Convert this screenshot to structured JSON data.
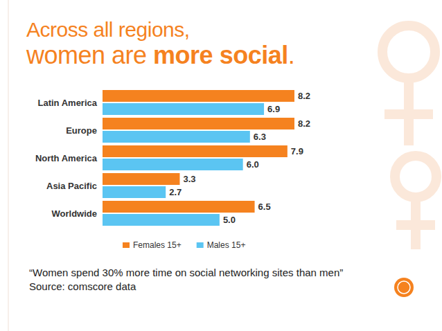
{
  "chart_data": {
    "type": "bar",
    "orientation": "horizontal",
    "title": "Across all regions, women are more social.",
    "categories": [
      "Latin America",
      "Europe",
      "North America",
      "Asia Pacific",
      "Worldwide"
    ],
    "series": [
      {
        "name": "Females 15+",
        "color": "#f5821f",
        "values": [
          8.2,
          8.2,
          7.9,
          3.3,
          6.5
        ],
        "value_labels": [
          "8.2",
          "8.2",
          "7.9",
          "3.3",
          "6.5"
        ]
      },
      {
        "name": "Males 15+",
        "color": "#5bc5f2",
        "values": [
          6.9,
          6.3,
          6.0,
          2.7,
          5.0
        ],
        "value_labels": [
          "6.9",
          "6.3",
          "6.0",
          "2.7",
          "5.0"
        ]
      }
    ],
    "xlim": [
      0,
      9
    ],
    "data_labels": true,
    "tick_labels": "y",
    "grid": false,
    "legend": "bottom",
    "annotations": [
      "“Women spend 30% more time on social networking sites than men”",
      "Source: comscore data"
    ]
  }
}
